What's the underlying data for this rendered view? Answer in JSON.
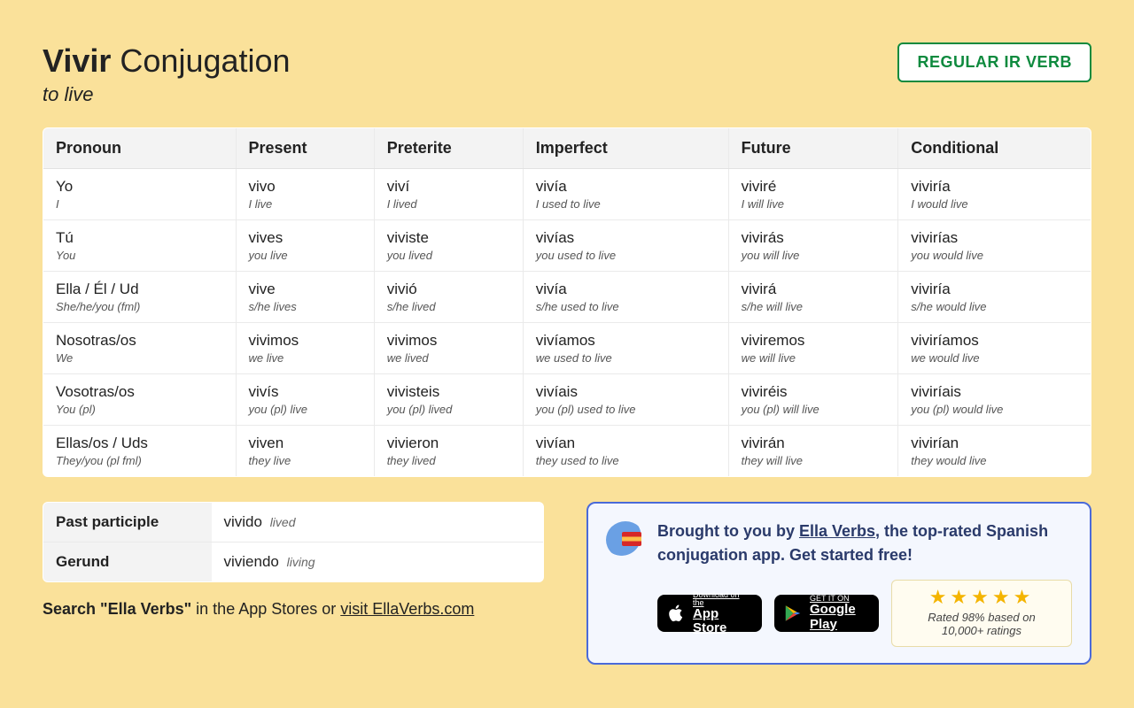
{
  "header": {
    "verb": "Vivir",
    "title_rest": " Conjugation",
    "subtitle": "to live",
    "badge": "REGULAR IR VERB"
  },
  "columns": [
    "Pronoun",
    "Present",
    "Preterite",
    "Imperfect",
    "Future",
    "Conditional"
  ],
  "rows": [
    {
      "pronoun": {
        "main": "Yo",
        "gloss": "I"
      },
      "cells": [
        {
          "main": "vivo",
          "gloss": "I live"
        },
        {
          "main": "viví",
          "gloss": "I lived"
        },
        {
          "main": "vivía",
          "gloss": "I used to live"
        },
        {
          "main": "viviré",
          "gloss": "I will live"
        },
        {
          "main": "viviría",
          "gloss": "I would live"
        }
      ]
    },
    {
      "pronoun": {
        "main": "Tú",
        "gloss": "You"
      },
      "cells": [
        {
          "main": "vives",
          "gloss": "you live"
        },
        {
          "main": "viviste",
          "gloss": "you lived"
        },
        {
          "main": "vivías",
          "gloss": "you used to live"
        },
        {
          "main": "vivirás",
          "gloss": "you will live"
        },
        {
          "main": "vivirías",
          "gloss": "you would live"
        }
      ]
    },
    {
      "pronoun": {
        "main": "Ella / Él / Ud",
        "gloss": "She/he/you (fml)"
      },
      "cells": [
        {
          "main": "vive",
          "gloss": "s/he lives"
        },
        {
          "main": "vivió",
          "gloss": "s/he lived"
        },
        {
          "main": "vivía",
          "gloss": "s/he used to live"
        },
        {
          "main": "vivirá",
          "gloss": "s/he will live"
        },
        {
          "main": "viviría",
          "gloss": "s/he would live"
        }
      ]
    },
    {
      "pronoun": {
        "main": "Nosotras/os",
        "gloss": "We"
      },
      "cells": [
        {
          "main": "vivimos",
          "gloss": "we live"
        },
        {
          "main": "vivimos",
          "gloss": "we lived"
        },
        {
          "main": "vivíamos",
          "gloss": "we used to live"
        },
        {
          "main": "viviremos",
          "gloss": "we will live"
        },
        {
          "main": "viviríamos",
          "gloss": "we would live"
        }
      ]
    },
    {
      "pronoun": {
        "main": "Vosotras/os",
        "gloss": "You (pl)"
      },
      "cells": [
        {
          "main": "vivís",
          "gloss": "you (pl) live"
        },
        {
          "main": "vivisteis",
          "gloss": "you (pl) lived"
        },
        {
          "main": "vivíais",
          "gloss": "you (pl) used to live"
        },
        {
          "main": "viviréis",
          "gloss": "you (pl) will live"
        },
        {
          "main": "viviríais",
          "gloss": "you (pl) would live"
        }
      ]
    },
    {
      "pronoun": {
        "main": "Ellas/os / Uds",
        "gloss": "They/you (pl fml)"
      },
      "cells": [
        {
          "main": "viven",
          "gloss": "they live"
        },
        {
          "main": "vivieron",
          "gloss": "they lived"
        },
        {
          "main": "vivían",
          "gloss": "they used to live"
        },
        {
          "main": "vivirán",
          "gloss": "they will live"
        },
        {
          "main": "vivirían",
          "gloss": "they would live"
        }
      ]
    }
  ],
  "parts": [
    {
      "label": "Past participle",
      "main": "vivido",
      "gloss": "lived"
    },
    {
      "label": "Gerund",
      "main": "viviendo",
      "gloss": "living"
    }
  ],
  "search_line": {
    "bold": "Search \"Ella Verbs\"",
    "rest": " in the App Stores or ",
    "link": "visit EllaVerbs.com"
  },
  "promo": {
    "pre": "Brought to you by ",
    "link": "Ella Verbs",
    "post": ", the top-rated Spanish conjugation app. Get started free!",
    "appstore": {
      "small": "Download on the",
      "big": "App Store"
    },
    "play": {
      "small": "GET IT ON",
      "big": "Google Play"
    },
    "stars": "★★★★★",
    "rating_text": "Rated 98% based on 10,000+ ratings"
  },
  "styling": {
    "page_bg": "#fae19a",
    "table_bg": "#ffffff",
    "header_bg": "#f3f3f3",
    "border_color": "#e2e2e2",
    "badge_color": "#0e8a3e",
    "promo_bg": "#f4f7fe",
    "promo_border": "#4a6ad9",
    "star_color": "#f4b400",
    "rating_bg": "#fffcf0"
  }
}
